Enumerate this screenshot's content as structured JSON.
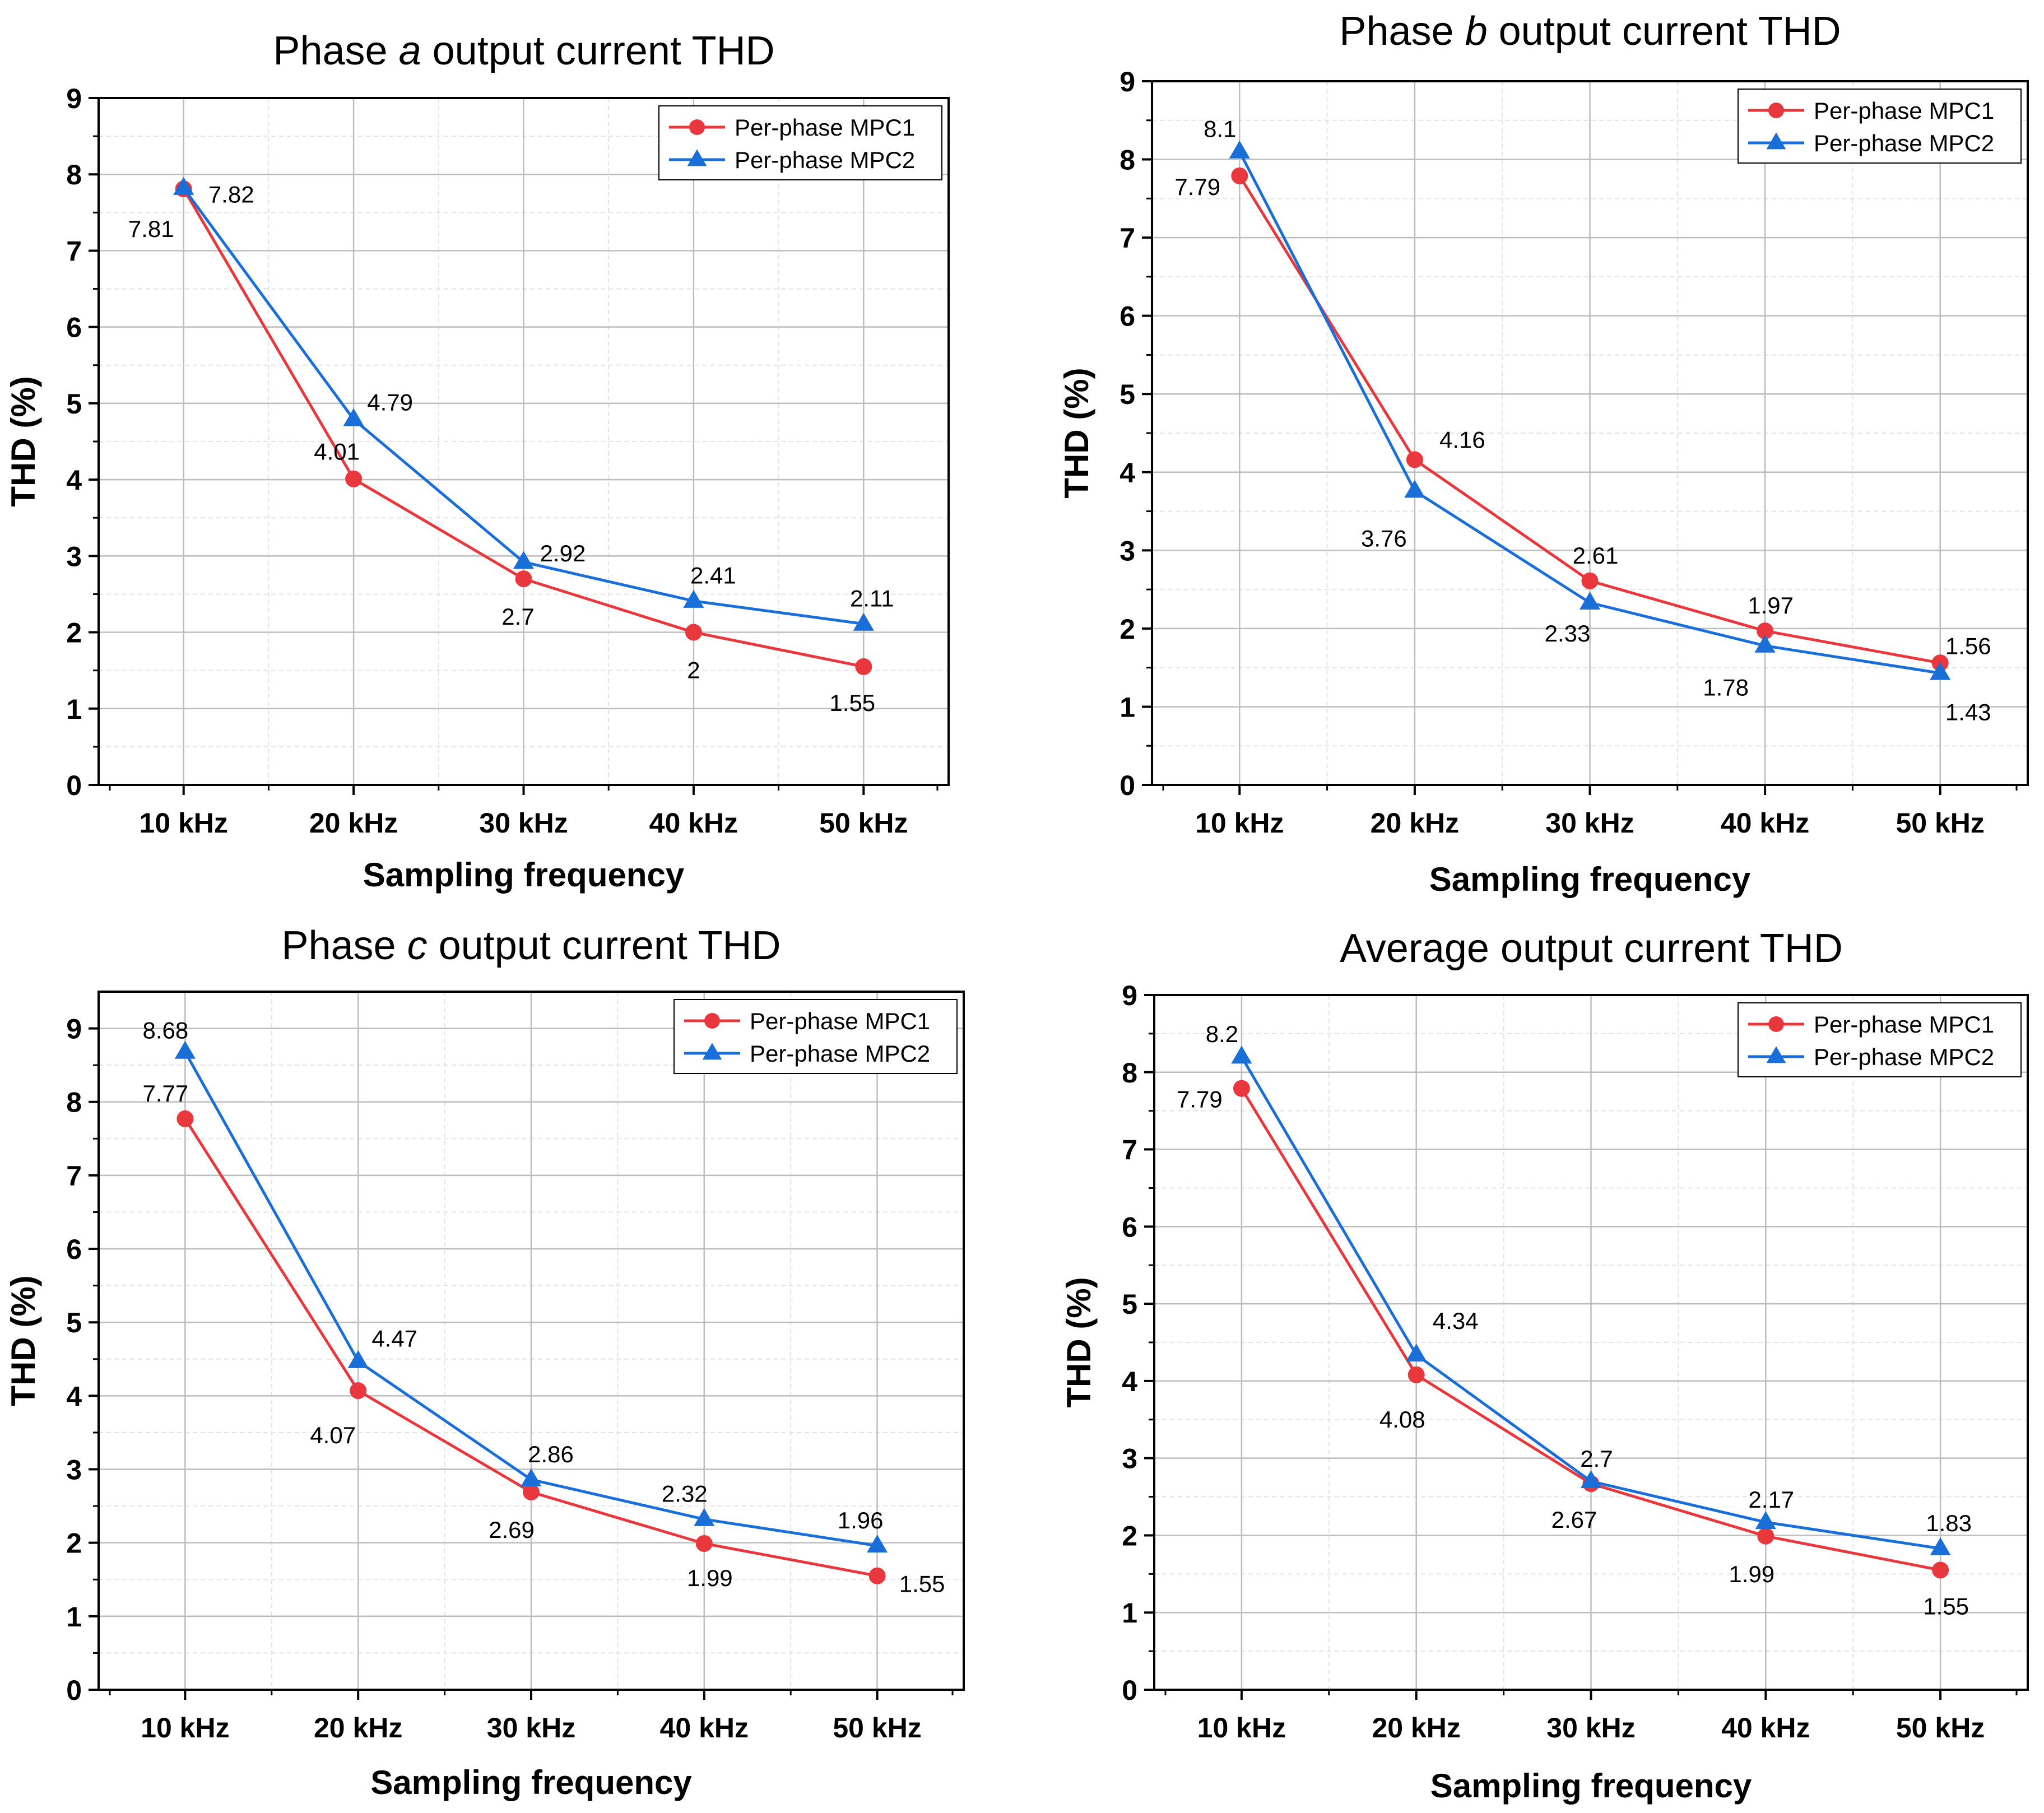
{
  "colors": {
    "mpc1": "#e8383d",
    "mpc2": "#1a6ed8",
    "grid": "#bdbdbd",
    "minor": "#e3e3e3"
  },
  "chart_data": [
    {
      "type": "line",
      "title_pre": "Phase ",
      "title_var": "a",
      "title_post": " output current THD",
      "xlabel": "Sampling frequency",
      "ylabel": "THD (%)",
      "categories": [
        "10 kHz",
        "20 kHz",
        "30 kHz",
        "40 kHz",
        "50 kHz"
      ],
      "ylim": [
        0,
        9
      ],
      "yticks": [
        0,
        1,
        2,
        3,
        4,
        5,
        6,
        7,
        8,
        9
      ],
      "legend_position": "top-right",
      "series": [
        {
          "name": "Per-phase MPC1",
          "marker": "circle",
          "values": [
            7.81,
            4.01,
            2.7,
            2,
            1.55
          ],
          "labels": [
            "7.81",
            "4.01",
            "2.7",
            "2",
            "1.55"
          ]
        },
        {
          "name": "Per-phase MPC2",
          "marker": "triangle",
          "values": [
            7.82,
            4.79,
            2.92,
            2.41,
            2.11
          ],
          "labels": [
            "7.82",
            "4.79",
            "2.92",
            "2.41",
            "2.11"
          ]
        }
      ]
    },
    {
      "type": "line",
      "title_pre": "Phase ",
      "title_var": "b",
      "title_post": " output current THD",
      "xlabel": "Sampling frequency",
      "ylabel": "THD (%)",
      "categories": [
        "10 kHz",
        "20 kHz",
        "30 kHz",
        "40 kHz",
        "50 kHz"
      ],
      "ylim": [
        0,
        9
      ],
      "yticks": [
        0,
        1,
        2,
        3,
        4,
        5,
        6,
        7,
        8,
        9
      ],
      "legend_position": "top-right",
      "series": [
        {
          "name": "Per-phase MPC1",
          "marker": "circle",
          "values": [
            7.79,
            4.16,
            2.61,
            1.97,
            1.56
          ],
          "labels": [
            "7.79",
            "4.16",
            "2.61",
            "1.97",
            "1.56"
          ]
        },
        {
          "name": "Per-phase MPC2",
          "marker": "triangle",
          "values": [
            8.1,
            3.76,
            2.33,
            1.78,
            1.43
          ],
          "labels": [
            "8.1",
            "3.76",
            "2.33",
            "1.78",
            "1.43"
          ]
        }
      ]
    },
    {
      "type": "line",
      "title_pre": "Phase ",
      "title_var": "c",
      "title_post": " output current THD",
      "xlabel": "Sampling frequency",
      "ylabel": "THD (%)",
      "categories": [
        "10 kHz",
        "20 kHz",
        "30 kHz",
        "40 kHz",
        "50 kHz"
      ],
      "ylim": [
        0,
        9.5
      ],
      "yticks": [
        0,
        1,
        2,
        3,
        4,
        5,
        6,
        7,
        8,
        9
      ],
      "legend_position": "top-right",
      "series": [
        {
          "name": "Per-phase MPC1",
          "marker": "circle",
          "values": [
            7.77,
            4.07,
            2.69,
            1.99,
            1.55
          ],
          "labels": [
            "7.77",
            "4.07",
            "2.69",
            "1.99",
            "1.55"
          ]
        },
        {
          "name": "Per-phase MPC2",
          "marker": "triangle",
          "values": [
            8.68,
            4.47,
            2.86,
            2.32,
            1.96
          ],
          "labels": [
            "8.68",
            "4.47",
            "2.86",
            "2.32",
            "1.96"
          ]
        }
      ]
    },
    {
      "type": "line",
      "title_pre": "Average output current THD",
      "title_var": "",
      "title_post": "",
      "xlabel": "Sampling frequency",
      "ylabel": "THD (%)",
      "categories": [
        "10 kHz",
        "20 kHz",
        "30 kHz",
        "40 kHz",
        "50 kHz"
      ],
      "ylim": [
        0,
        9
      ],
      "yticks": [
        0,
        1,
        2,
        3,
        4,
        5,
        6,
        7,
        8,
        9
      ],
      "legend_position": "top-right",
      "series": [
        {
          "name": "Per-phase MPC1",
          "marker": "circle",
          "values": [
            7.79,
            4.08,
            2.67,
            1.99,
            1.55
          ],
          "labels": [
            "7.79",
            "4.08",
            "2.67",
            "1.99",
            "1.55"
          ]
        },
        {
          "name": "Per-phase MPC2",
          "marker": "triangle",
          "values": [
            8.2,
            4.34,
            2.7,
            2.17,
            1.83
          ],
          "labels": [
            "8.2",
            "4.34",
            "2.7",
            "2.17",
            "1.83"
          ]
        }
      ]
    }
  ]
}
